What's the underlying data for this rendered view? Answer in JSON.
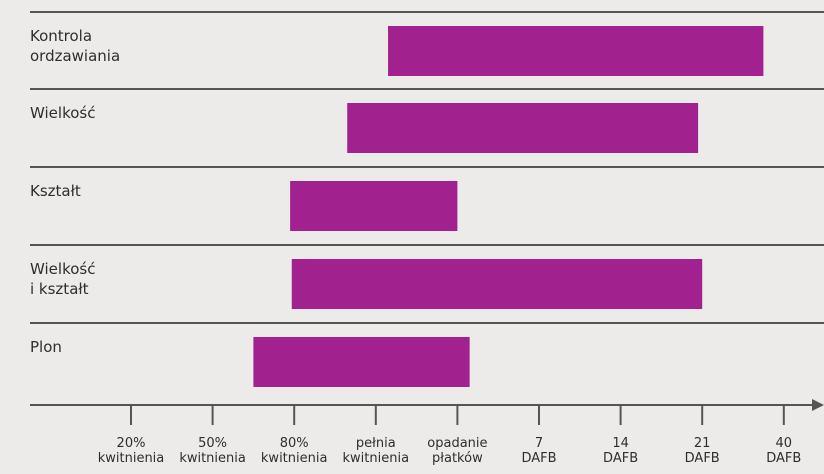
{
  "chart_data": {
    "type": "bar",
    "orientation": "horizontal-range",
    "title": "",
    "xlabel": "",
    "ylabel": "",
    "bar_color": "#a1228f",
    "grid_color": "#555555",
    "x_ticks": [
      {
        "line1": "20%",
        "line2": "kwitnienia"
      },
      {
        "line1": "50%",
        "line2": "kwitnienia"
      },
      {
        "line1": "80%",
        "line2": "kwitnienia"
      },
      {
        "line1": "pełnia",
        "line2": "kwitnienia"
      },
      {
        "line1": "opadanie",
        "line2": "płatków"
      },
      {
        "line1": "7",
        "line2": "DAFB"
      },
      {
        "line1": "14",
        "line2": "DAFB"
      },
      {
        "line1": "21",
        "line2": "DAFB"
      },
      {
        "line1": "40",
        "line2": "DAFB"
      }
    ],
    "rows": [
      {
        "label_lines": [
          "Kontrola",
          "ordzawiania"
        ],
        "start": 3.15,
        "end": 7.75
      },
      {
        "label_lines": [
          "Wielkość"
        ],
        "start": 2.65,
        "end": 6.95
      },
      {
        "label_lines": [
          "Kształt"
        ],
        "start": 1.95,
        "end": 4.0
      },
      {
        "label_lines": [
          "Wielkość",
          "i kształt"
        ],
        "start": 1.97,
        "end": 7.0
      },
      {
        "label_lines": [
          "Plon"
        ],
        "start": 1.5,
        "end": 4.15
      }
    ]
  }
}
